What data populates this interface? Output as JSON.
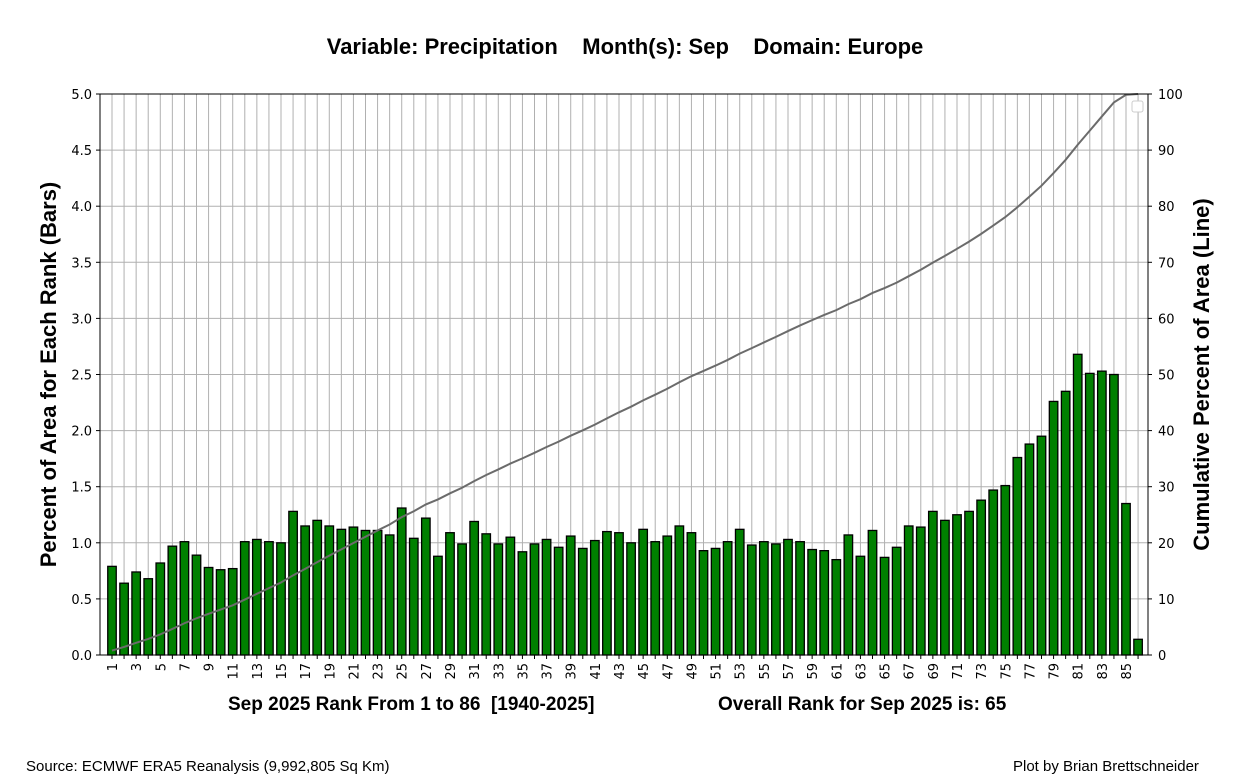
{
  "chart_data": {
    "type": "bar",
    "title": "Variable: Precipitation    Month(s): Sep    Domain: Europe",
    "xlabel": "Sep 2025 Rank From 1 to 86  [1940-2025]",
    "xlabel_right": "Overall Rank for Sep 2025 is: 65",
    "ylabel": "Percent of Area for Each Rank (Bars)",
    "ylabel_right": "Cumulative Percent of Area (Line)",
    "ylim": [
      0,
      5
    ],
    "ylim_right": [
      0,
      100
    ],
    "yticks": [
      "0.0",
      "0.5",
      "1.0",
      "1.5",
      "2.0",
      "2.5",
      "3.0",
      "3.5",
      "4.0",
      "4.5",
      "5.0"
    ],
    "yticks_right": [
      "0",
      "10",
      "20",
      "30",
      "40",
      "50",
      "60",
      "70",
      "80",
      "90",
      "100"
    ],
    "grid": true,
    "legend": "top-right (empty)",
    "bar_color": "#008000",
    "line_color": "#6b6b6b",
    "categories": [
      1,
      2,
      3,
      4,
      5,
      6,
      7,
      8,
      9,
      10,
      11,
      12,
      13,
      14,
      15,
      16,
      17,
      18,
      19,
      20,
      21,
      22,
      23,
      24,
      25,
      26,
      27,
      28,
      29,
      30,
      31,
      32,
      33,
      34,
      35,
      36,
      37,
      38,
      39,
      40,
      41,
      42,
      43,
      44,
      45,
      46,
      47,
      48,
      49,
      50,
      51,
      52,
      53,
      54,
      55,
      56,
      57,
      58,
      59,
      60,
      61,
      62,
      63,
      64,
      65,
      66,
      67,
      68,
      69,
      70,
      71,
      72,
      73,
      74,
      75,
      76,
      77,
      78,
      79,
      80,
      81,
      82,
      83,
      84,
      85,
      86
    ],
    "values": [
      0.79,
      0.64,
      0.74,
      0.68,
      0.82,
      0.97,
      1.01,
      0.89,
      0.78,
      0.76,
      0.77,
      1.01,
      1.03,
      1.01,
      1.0,
      1.28,
      1.15,
      1.2,
      1.15,
      1.12,
      1.14,
      1.11,
      1.11,
      1.07,
      1.31,
      1.04,
      1.22,
      0.88,
      1.09,
      0.99,
      1.19,
      1.08,
      0.99,
      1.05,
      0.92,
      0.99,
      1.03,
      0.96,
      1.06,
      0.95,
      1.02,
      1.1,
      1.09,
      1.0,
      1.12,
      1.01,
      1.06,
      1.15,
      1.09,
      0.93,
      0.95,
      1.01,
      1.12,
      0.98,
      1.01,
      0.99,
      1.03,
      1.01,
      0.94,
      0.93,
      0.85,
      1.07,
      0.88,
      1.11,
      0.87,
      0.96,
      1.15,
      1.14,
      1.28,
      1.2,
      1.25,
      1.28,
      1.38,
      1.47,
      1.51,
      1.76,
      1.88,
      1.95,
      2.26,
      2.35,
      2.68,
      2.51,
      2.53,
      2.5,
      1.35,
      0.14
    ]
  },
  "footer": {
    "source": "Source: ECMWF ERA5 Reanalysis (9,992,805 Sq Km)",
    "credit": "Plot by Brian Brettschneider"
  }
}
